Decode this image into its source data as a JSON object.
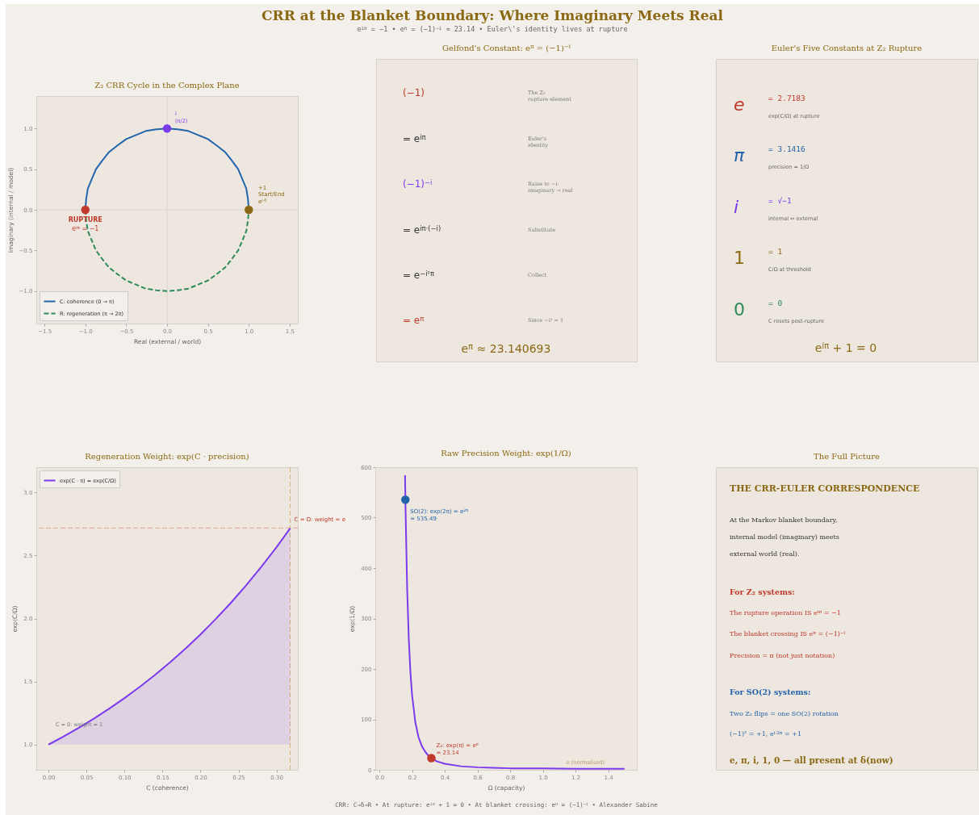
{
  "chart_data": [
    {
      "type": "other",
      "title": "CRR at the Blanket Boundary: Where Imaginary Meets Real",
      "subtitle": "e$^{iπ}$ = −1  •  e$^{π}$ = (−1)$^{−i}$ ≈ 23.14  •  Euler\\'s identity lives at rupture",
      "annotations": [
        "CRR: C→δ→R  •  At rupture: e$^{iπ}$ + 1 = 0  •  At blanket crossing: e$^{π}$ = (−1)$^{−i}$  •  Alexander Sabine"
      ]
    },
    {
      "type": "line",
      "title": "Z₂ CRR Cycle in the Complex Plane",
      "xlabel": "Real (external / world)",
      "ylabel": "Imaginary (internal / model)",
      "xlim": [
        -1.6,
        1.6
      ],
      "ylim": [
        -1.4,
        1.4
      ],
      "xticks": [
        {
          "value": -1.5,
          "label": "−1.5"
        },
        {
          "value": -1,
          "label": "−1.0"
        },
        {
          "value": -0.5,
          "label": "−0.5"
        },
        {
          "value": 0,
          "label": "0.0"
        },
        0.5,
        {
          "value": 1,
          "label": "1.0"
        },
        1.5
      ],
      "yticks": [
        {
          "value": -1,
          "label": "−1.0"
        },
        {
          "value": -0.5,
          "label": "−0.5"
        },
        {
          "value": 0,
          "label": "0.0"
        },
        0.5,
        {
          "value": 1,
          "label": "1.0"
        }
      ],
      "legend": "bottom left",
      "series": [
        {
          "name": "C: coherence (0 → π)",
          "color": "#2166ac",
          "x": [
            1,
            0.99,
            0.97,
            0.92,
            0.87,
            0.79,
            0.71,
            0.61,
            0.5,
            0.38,
            0.26,
            0.13,
            0,
            -0.13,
            -0.26,
            -0.38,
            -0.5,
            -0.61,
            -0.71,
            -0.79,
            -0.87,
            -0.92,
            -0.97,
            -0.99,
            -1
          ],
          "values": [
            0,
            0.13,
            0.26,
            0.38,
            0.5,
            0.61,
            0.71,
            0.79,
            0.87,
            0.92,
            0.97,
            0.99,
            1,
            0.99,
            0.97,
            0.92,
            0.87,
            0.79,
            0.71,
            0.61,
            0.5,
            0.38,
            0.26,
            0.13,
            0
          ]
        },
        {
          "name": "R: regeneration (π → 2π)",
          "color": "#2e8b57",
          "line_style": "dashed",
          "x": [
            -1,
            -0.99,
            -0.97,
            -0.92,
            -0.87,
            -0.79,
            -0.71,
            -0.61,
            -0.5,
            -0.38,
            -0.26,
            -0.13,
            0,
            0.13,
            0.26,
            0.38,
            0.5,
            0.61,
            0.71,
            0.79,
            0.87,
            0.92,
            0.97,
            0.99,
            1
          ],
          "values": [
            0,
            -0.13,
            -0.26,
            -0.38,
            -0.5,
            -0.61,
            -0.71,
            -0.79,
            -0.87,
            -0.92,
            -0.97,
            -0.99,
            -1,
            -0.99,
            -0.97,
            -0.92,
            -0.87,
            -0.79,
            -0.71,
            -0.61,
            -0.5,
            -0.38,
            -0.26,
            -0.13,
            0
          ]
        },
        {
          "type": "scatter",
          "color": "#c0392b",
          "marker": "circle",
          "x": [
            -1
          ],
          "values": [
            0
          ]
        },
        {
          "type": "scatter",
          "color": "#7c3aed",
          "marker": "circle",
          "x": [
            0
          ],
          "values": [
            1
          ]
        },
        {
          "type": "scatter",
          "color": "#8b6914",
          "marker": "circle",
          "x": [
            1
          ],
          "values": [
            0
          ]
        }
      ],
      "ref_lines": [
        {
          "axis": "x",
          "value": 0,
          "color": "#d8d0c6"
        },
        {
          "axis": "y",
          "value": 0,
          "color": "#d8d0c6"
        }
      ],
      "annotations": [
        {
          "text": "RUPTURE",
          "x": -1,
          "y": 0
        },
        {
          "text": "e$^{iπ}$ = −1",
          "x": -1,
          "y": 0
        },
        {
          "text": "i",
          "x": 0,
          "y": 1
        },
        {
          "text": "(π/2)",
          "x": 0,
          "y": 1
        },
        "+1",
        "Start/End",
        "e$^{i·0}$"
      ]
    },
    {
      "type": "other",
      "title": "Gelfond's Constant: e$^{π}$ = (−1)$^{−i}$",
      "annotations": [
        "(−1)",
        "The Z₂\nrupture element",
        "= e$^{iπ}$",
        "Euler's\nidentity",
        "(−1)$^{−i}$",
        "Raise to −i:\nimaginary → real",
        "= e$^{iπ·(−i)}$",
        "Substitute",
        "= e$^{−i²π}$",
        "Collect",
        "= e$^{π}$",
        "Since −i² = 1",
        "e$^{π}$ ≈ 23.140693"
      ]
    },
    {
      "type": "other",
      "title": "Euler's Five Constants at Z₂ Rupture",
      "annotations": [
        "e",
        "= 2.7183",
        "exp(C/Ω) at rupture",
        "π",
        "= 3.1416",
        "precision  = 1/Ω",
        "i",
        "= √−1",
        "internal ↔ external",
        "1",
        "= 1",
        "C/Ω at threshold",
        "0",
        "= 0",
        "C resets post-rupture",
        "e$^{iπ}$ + 1 = 0"
      ]
    },
    {
      "type": "line",
      "title": "Regeneration Weight: exp(C · precision)",
      "xlabel": "C (coherence)",
      "ylabel": "exp(C/Ω)",
      "xlim": [
        -0.016,
        0.328
      ],
      "ylim": [
        0.8,
        3.2
      ],
      "xticks": [
        {
          "value": 0,
          "label": "0.00"
        },
        0.05,
        {
          "value": 0.1,
          "label": "0.10"
        },
        0.15,
        {
          "value": 0.2,
          "label": "0.20"
        },
        0.25,
        {
          "value": 0.3,
          "label": "0.30"
        }
      ],
      "yticks": [
        {
          "value": 1,
          "label": "1.0"
        },
        1.5,
        {
          "value": 2,
          "label": "2.0"
        },
        2.5,
        {
          "value": 3,
          "label": "3.0"
        }
      ],
      "legend": "top left",
      "series": [
        {
          "name": "exp(C · π) = exp(C/Ω)",
          "color": "#7c3aed",
          "x": [
            0,
            0.02,
            0.04,
            0.06,
            0.08,
            0.1,
            0.12,
            0.14,
            0.16,
            0.18,
            0.2,
            0.22,
            0.24,
            0.26,
            0.28,
            0.3,
            0.318
          ],
          "values": [
            1,
            1.065,
            1.134,
            1.207,
            1.286,
            1.369,
            1.458,
            1.552,
            1.653,
            1.76,
            1.874,
            1.996,
            2.125,
            2.263,
            2.41,
            2.566,
            2.716
          ],
          "lower": [
            1,
            1,
            1,
            1,
            1,
            1,
            1,
            1,
            1,
            1,
            1,
            1,
            1,
            1,
            1,
            1,
            1
          ],
          "upper": [
            1,
            1.065,
            1.134,
            1.207,
            1.286,
            1.369,
            1.458,
            1.552,
            1.653,
            1.76,
            1.874,
            1.996,
            2.125,
            2.263,
            2.41,
            2.566,
            2.716
          ]
        }
      ],
      "ref_lines": [
        {
          "axis": "y",
          "value": 2.718,
          "color": "#e0907f",
          "line_style": "dashed"
        },
        {
          "axis": "x",
          "value": 0.318,
          "color": "#c9a55a",
          "line_style": "dashed"
        }
      ],
      "annotations": [
        "C = 0: weight  = 1",
        {
          "text": "C = Ω: weight  = e",
          "x": 0.318,
          "y": 2.718
        }
      ]
    },
    {
      "type": "line",
      "title": "Raw Precision Weight: exp(1/Ω)",
      "xlabel": "Ω (capacity)",
      "ylabel": "exp(1/Ω)",
      "xlim": [
        -0.025,
        1.575
      ],
      "ylim": [
        0,
        600
      ],
      "xticks": [
        {
          "value": 0,
          "label": "0.0"
        },
        0.2,
        0.4,
        0.6,
        0.8,
        {
          "value": 1,
          "label": "1.0"
        },
        1.2,
        1.4
      ],
      "yticks": [
        0,
        100,
        200,
        300,
        400,
        500,
        600
      ],
      "series": [
        {
          "color": "#7c3aed",
          "x": [
            0.157,
            0.16,
            0.17,
            0.18,
            0.19,
            0.2,
            0.22,
            0.24,
            0.26,
            0.28,
            0.3,
            0.35,
            0.4,
            0.5,
            0.6,
            0.7,
            0.8,
            1.0,
            1.2,
            1.5
          ],
          "values": [
            584,
            518,
            359,
            259,
            193,
            148,
            94,
            64,
            47,
            36,
            28,
            17,
            12,
            7,
            5,
            4,
            3,
            3,
            2,
            2
          ]
        },
        {
          "type": "scatter",
          "color": "#2563a8",
          "marker": "circle",
          "x": [
            0.159
          ],
          "values": [
            535.49
          ]
        },
        {
          "type": "scatter",
          "color": "#c0392b",
          "marker": "circle",
          "x": [
            0.318
          ],
          "values": [
            23.14
          ]
        }
      ],
      "annotations": [
        {
          "text": "SO(2): exp(2π) = e$^{2π}$",
          "x": 0.159,
          "y": 535.49
        },
        {
          "text": "= 535.49",
          "x": 0.159,
          "y": 535.49
        },
        {
          "text": "Z₂: exp(π) = e$^{π}$",
          "x": 0.318,
          "y": 23.14
        },
        {
          "text": "= 23.14",
          "x": 0.318,
          "y": 23.14
        },
        {
          "text": "e (normalised)",
          "x": 1.3,
          "y": 2.718
        }
      ]
    },
    {
      "type": "other",
      "title": "The Full Picture",
      "annotations": [
        "THE CRR-EULER CORRESPONDENCE",
        "At the Markov blanket boundary,",
        "internal model (imaginary) meets",
        "external world (real).",
        "For Z₂ systems:",
        "The rupture operation IS e$^{iπ}$ = −1",
        "The blanket crossing IS e$^{π}$ = (−1)$^{−i}$",
        "Precision  = π (not just notation)",
        "For SO(2) systems:",
        "Two Z₂ flips = one SO(2) rotation",
        "(−1)² = +1,   e$^{i·2π}$ = +1",
        "e, π, i, 1, 0  —  all present at δ(now)"
      ]
    }
  ]
}
